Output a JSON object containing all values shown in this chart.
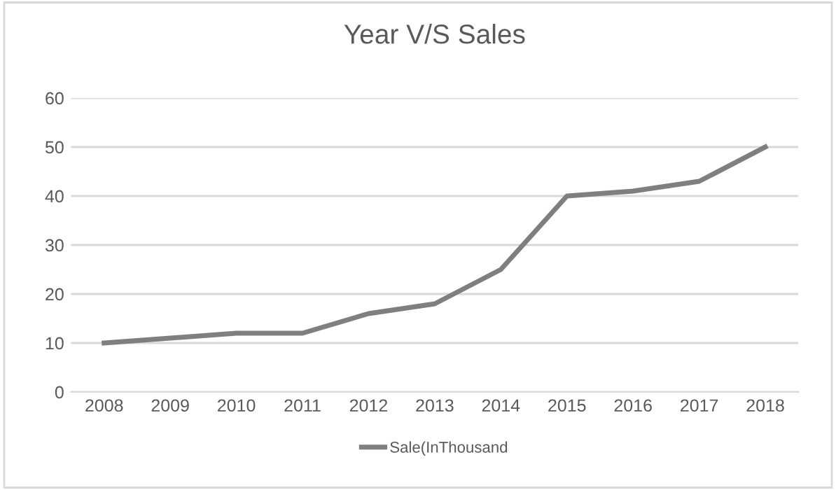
{
  "chart_data": {
    "type": "line",
    "title": "Year V/S Sales",
    "categories": [
      "2008",
      "2009",
      "2010",
      "2011",
      "2012",
      "2013",
      "2014",
      "2015",
      "2016",
      "2017",
      "2018"
    ],
    "series": [
      {
        "name": "Sale(InThousand",
        "color": "#7f7f7f",
        "values": [
          10,
          11,
          12,
          12,
          16,
          18,
          25,
          40,
          41,
          43,
          50
        ]
      }
    ],
    "ylim": [
      0,
      60
    ],
    "yticks": [
      0,
      10,
      20,
      30,
      40,
      50,
      60
    ],
    "grid": "y",
    "legend": "bottom",
    "marker": "none",
    "line_style": "solid"
  }
}
